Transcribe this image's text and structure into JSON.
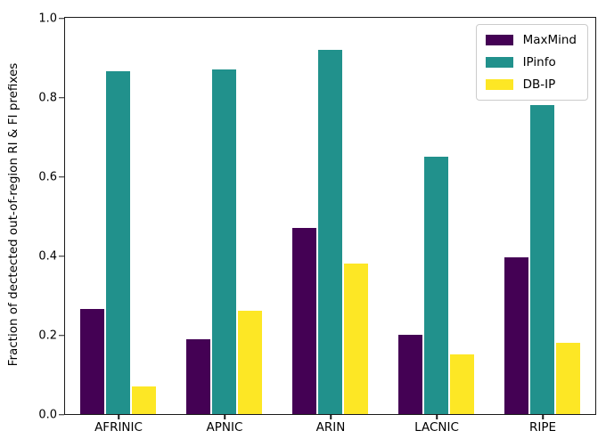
{
  "chart_data": {
    "type": "bar",
    "categories": [
      "AFRINIC",
      "APNIC",
      "ARIN",
      "LACNIC",
      "RIPE"
    ],
    "series": [
      {
        "name": "MaxMind",
        "color": "#440154",
        "values": [
          0.265,
          0.19,
          0.47,
          0.2,
          0.395
        ]
      },
      {
        "name": "IPinfo",
        "color": "#21918c",
        "values": [
          0.865,
          0.87,
          0.92,
          0.65,
          0.78
        ]
      },
      {
        "name": "DB-IP",
        "color": "#fde725",
        "values": [
          0.07,
          0.26,
          0.38,
          0.15,
          0.18
        ]
      }
    ],
    "title": "",
    "xlabel": "",
    "ylabel": "Fraction of dectected out-of-region RI & FI prefixes",
    "ylim": [
      0.0,
      1.0
    ],
    "yticks": [
      0.0,
      0.2,
      0.4,
      0.6,
      0.8,
      1.0
    ],
    "grid": false,
    "legend_position": "upper right",
    "spine_color": "#1a1a1a",
    "background_color": "#ffffff"
  }
}
